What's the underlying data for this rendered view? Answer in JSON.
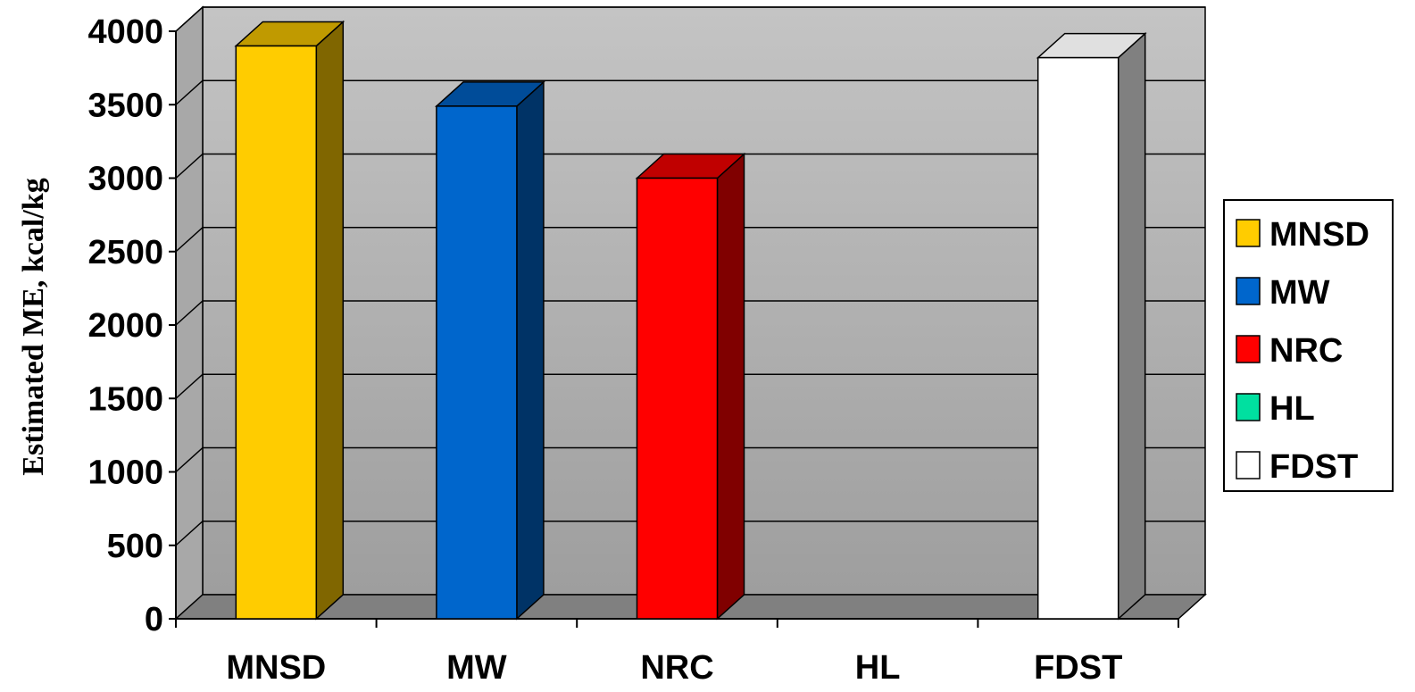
{
  "chart_data": {
    "type": "bar",
    "three_d": true,
    "title": "",
    "xlabel": "",
    "ylabel": "Estimated ME, kcal/kg",
    "ylim": [
      0,
      4000
    ],
    "yticks": [
      0,
      500,
      1000,
      1500,
      2000,
      2500,
      3000,
      3500,
      4000
    ],
    "grid": true,
    "legend_position": "right",
    "categories": [
      "MNSD",
      "MW",
      "NRC",
      "HL",
      "FDST"
    ],
    "values": [
      3900,
      3490,
      3000,
      0,
      3820
    ],
    "colors": {
      "MNSD": {
        "front": "#FFCC00",
        "side": "#806600",
        "top": "#C09A00"
      },
      "MW": {
        "front": "#0066CC",
        "side": "#003366",
        "top": "#004C99"
      },
      "NRC": {
        "front": "#FF0000",
        "side": "#800000",
        "top": "#C00000"
      },
      "HL": {
        "front": "#00E0A0",
        "side": "#007050",
        "top": "#00A878"
      },
      "FDST": {
        "front": "#FFFFFF",
        "side": "#808080",
        "top": "#E0E0E0"
      }
    },
    "legend": [
      "MNSD",
      "MW",
      "NRC",
      "HL",
      "FDST"
    ],
    "wall_color": "#BEBEBE",
    "floor_color": "#808080"
  }
}
